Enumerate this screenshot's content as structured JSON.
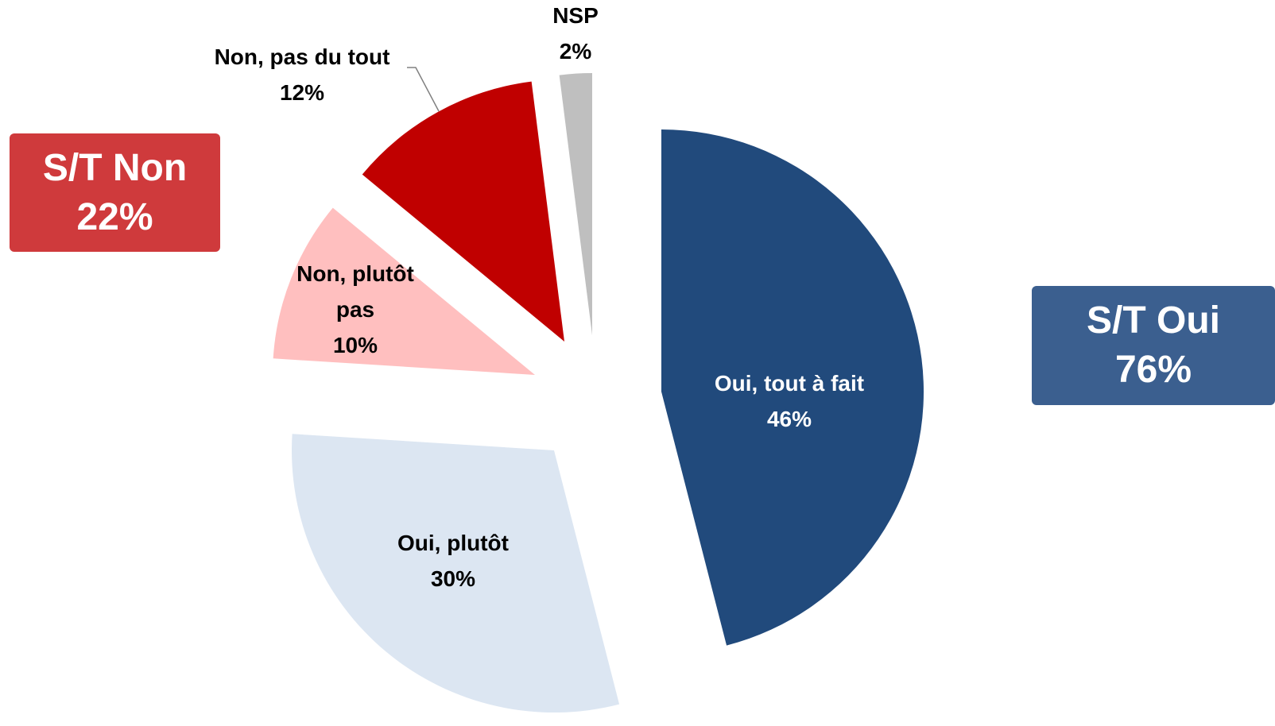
{
  "chart_data": {
    "type": "pie",
    "categories": [
      "Oui, tout à fait",
      "Oui, plutôt",
      "Non, plutôt pas",
      "Non, pas du tout",
      "NSP"
    ],
    "values": [
      46,
      30,
      10,
      12,
      2
    ],
    "value_labels": [
      "46%",
      "30%",
      "10%",
      "12%",
      "2%"
    ],
    "colors": [
      "#214a7c",
      "#dce6f2",
      "#ffbfbf",
      "#c00000",
      "#bfbfbf"
    ],
    "summaries": [
      {
        "name": "S/T Non",
        "label": "22%",
        "color": "#cf3a3c"
      },
      {
        "name": "S/T Oui",
        "label": "76%",
        "color": "#3b5f8f"
      }
    ]
  }
}
